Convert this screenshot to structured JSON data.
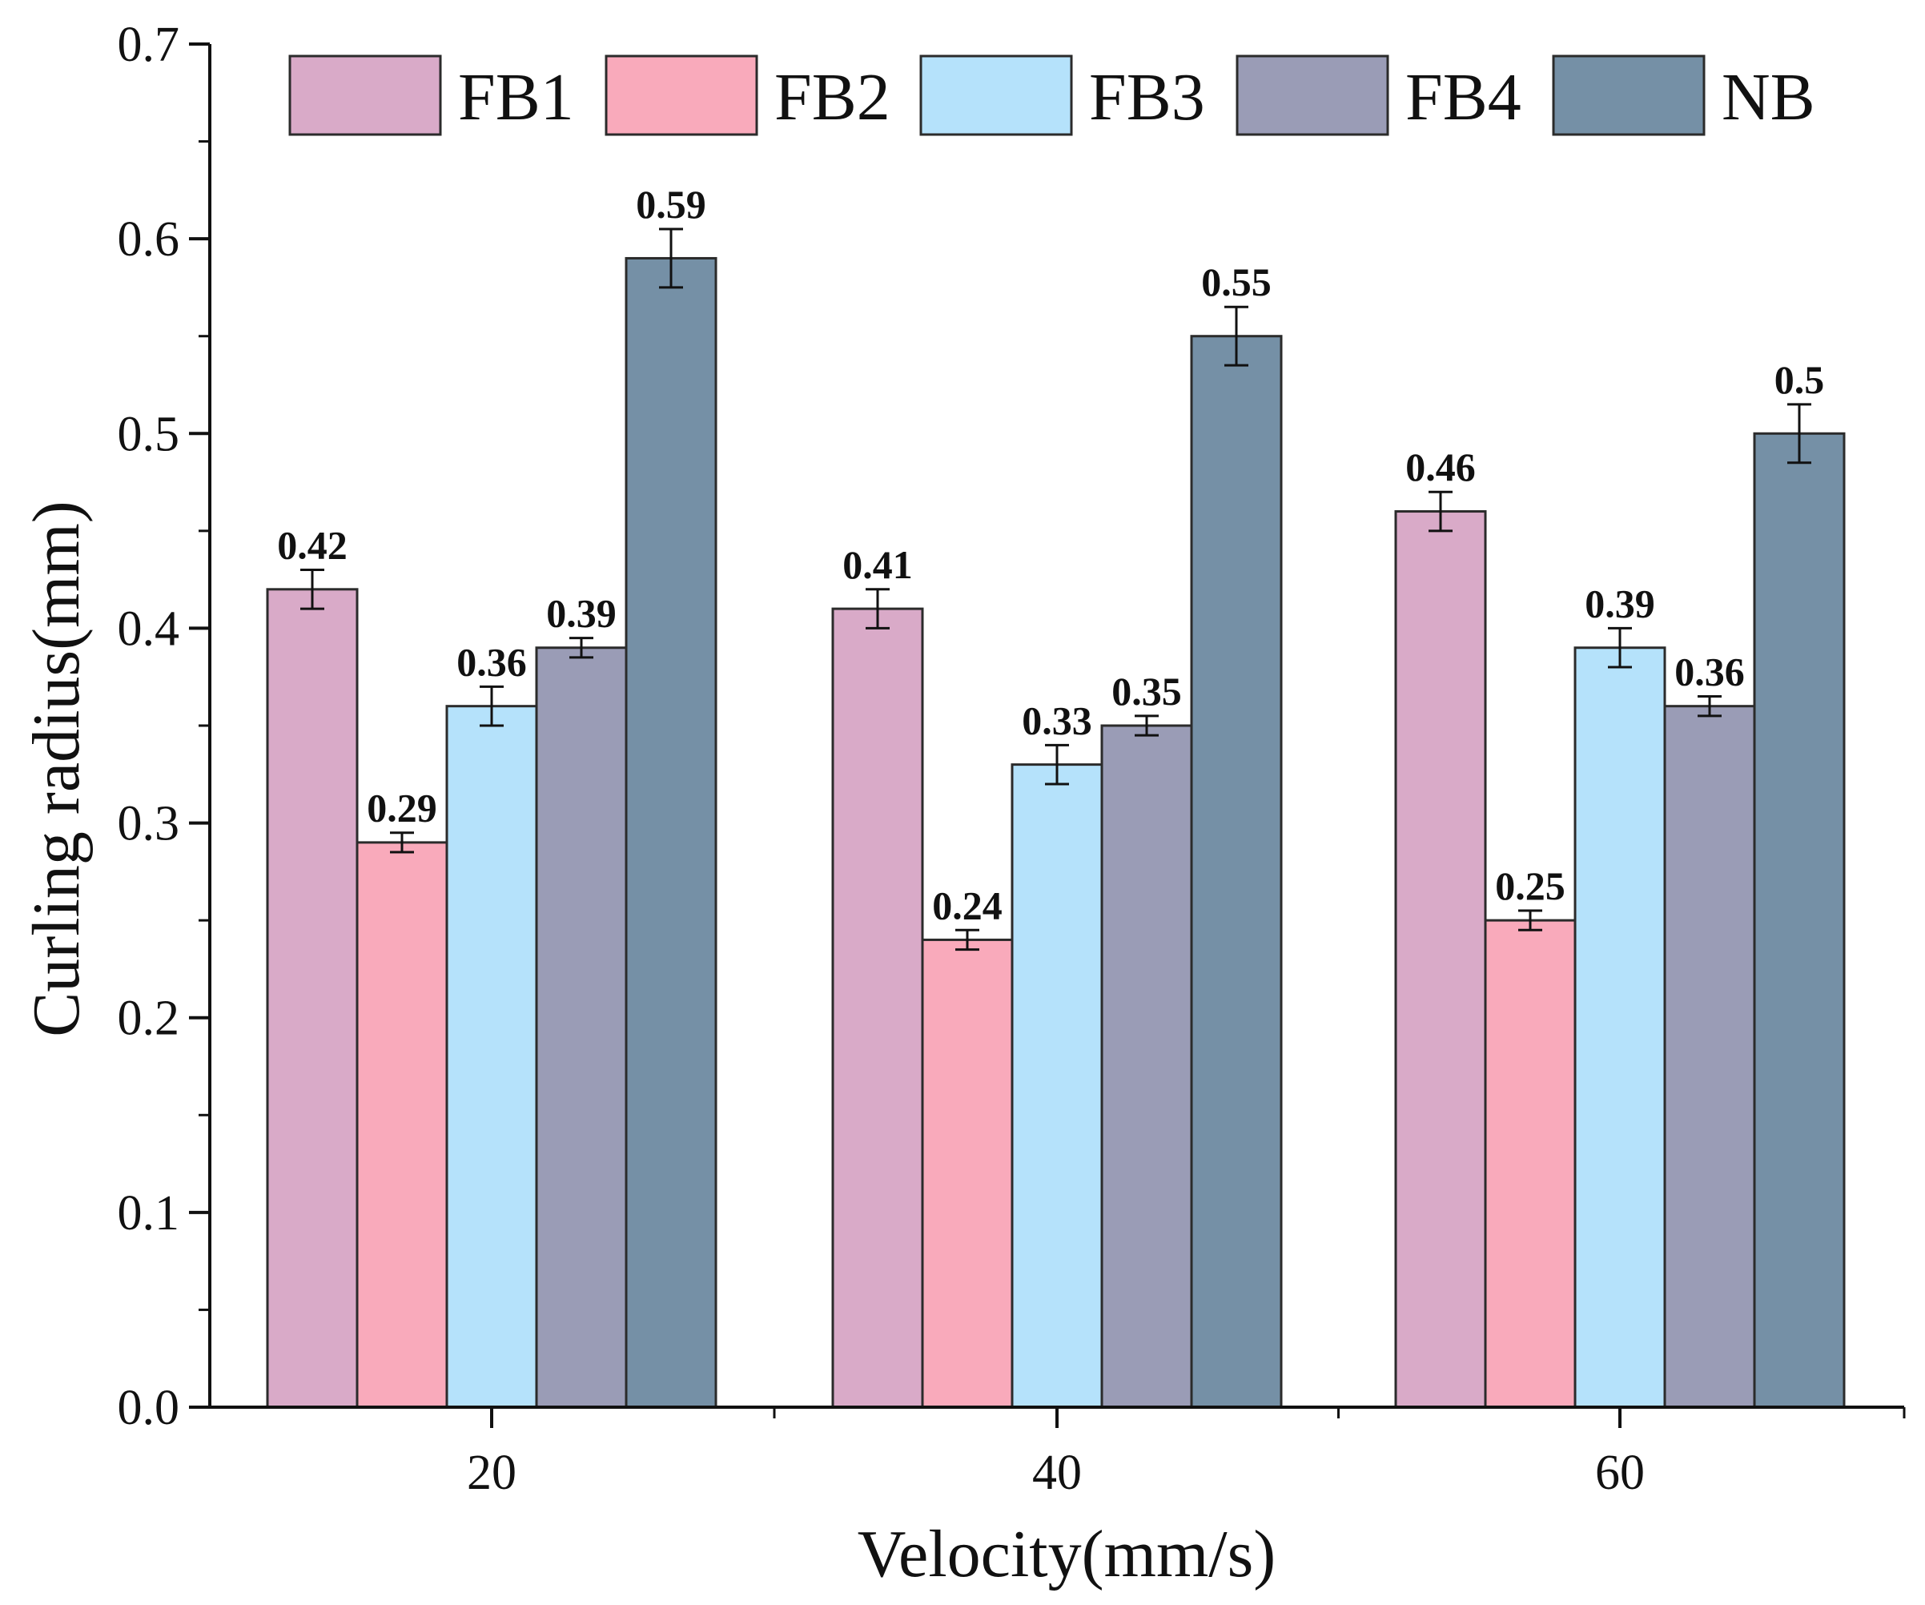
{
  "chart_data": {
    "type": "bar",
    "title": "",
    "xlabel": "Velocity(mm/s)",
    "ylabel": "Curling radius(mm)",
    "ylim": [
      0,
      0.7
    ],
    "yticks": [
      "0.0",
      "0.1",
      "0.2",
      "0.3",
      "0.4",
      "0.5",
      "0.6",
      "0.7"
    ],
    "categories": [
      "20",
      "40",
      "60"
    ],
    "legend_position": "top",
    "series": [
      {
        "name": "FB1",
        "color": "#d9aac8",
        "values": [
          0.42,
          0.41,
          0.46
        ],
        "labels": [
          "0.42",
          "0.41",
          "0.46"
        ],
        "errors": [
          0.01,
          0.01,
          0.01
        ]
      },
      {
        "name": "FB2",
        "color": "#f9aabb",
        "values": [
          0.29,
          0.24,
          0.25
        ],
        "labels": [
          "0.29",
          "0.24",
          "0.25"
        ],
        "errors": [
          0.005,
          0.005,
          0.005
        ]
      },
      {
        "name": "FB3",
        "color": "#b5e2fb",
        "values": [
          0.36,
          0.33,
          0.39
        ],
        "labels": [
          "0.36",
          "0.33",
          "0.39"
        ],
        "errors": [
          0.01,
          0.01,
          0.01
        ]
      },
      {
        "name": "FB4",
        "color": "#9a9cb6",
        "values": [
          0.39,
          0.35,
          0.36
        ],
        "labels": [
          "0.39",
          "0.35",
          "0.36"
        ],
        "errors": [
          0.005,
          0.005,
          0.005
        ]
      },
      {
        "name": "NB",
        "color": "#7590a6",
        "values": [
          0.59,
          0.55,
          0.5
        ],
        "labels": [
          "0.59",
          "0.55",
          "0.5"
        ],
        "errors": [
          0.015,
          0.015,
          0.015
        ]
      }
    ]
  }
}
